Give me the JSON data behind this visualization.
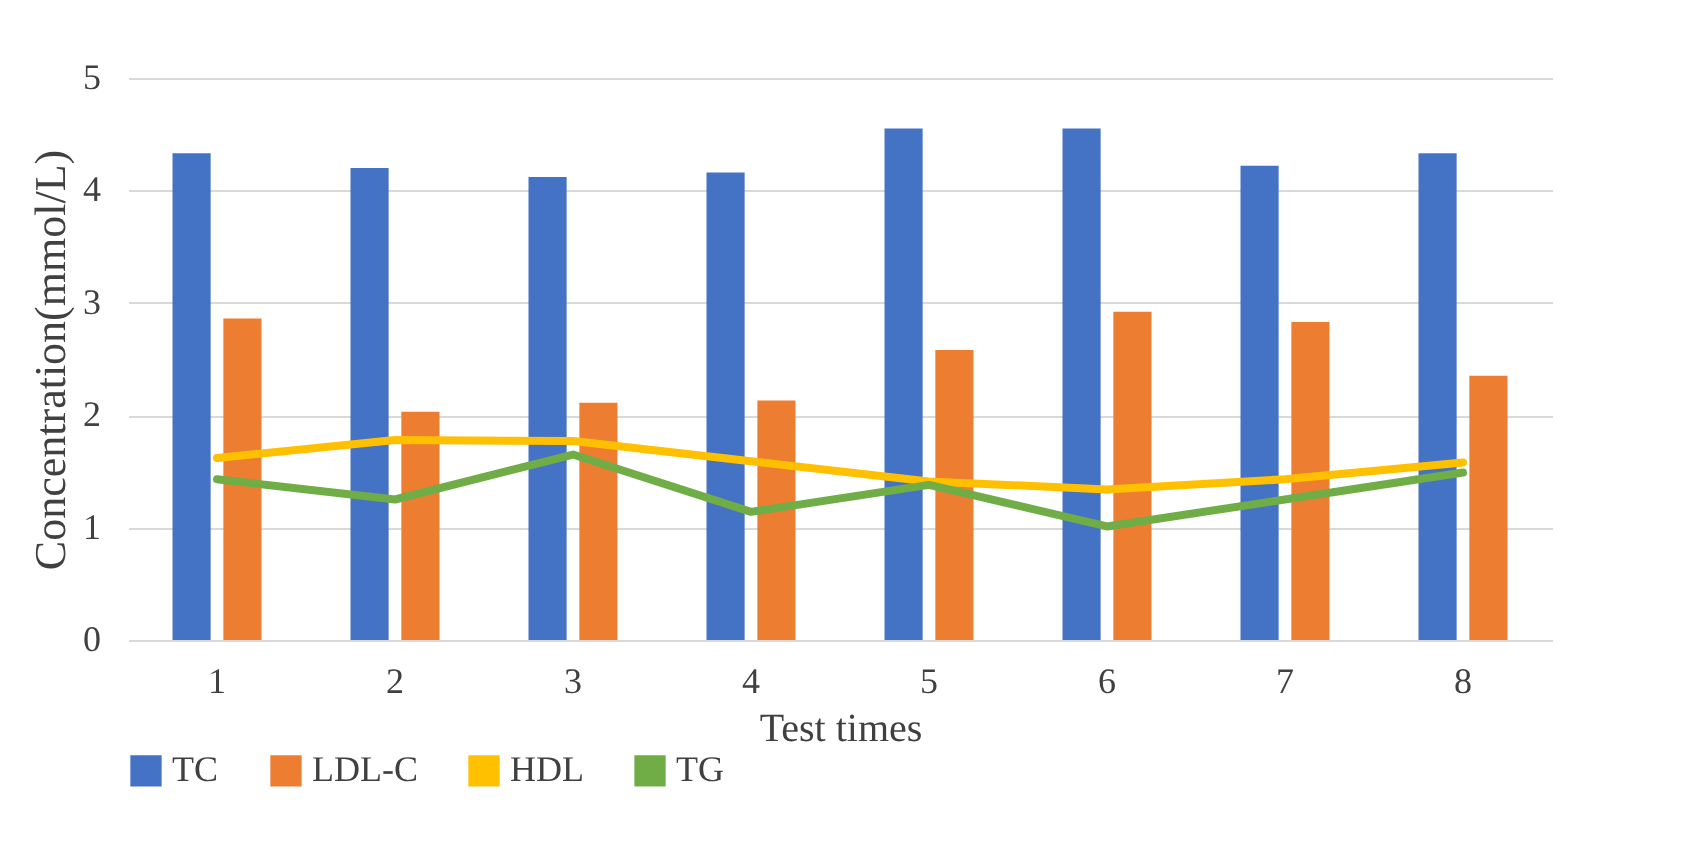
{
  "chart_data": {
    "type": "bar",
    "xlabel": "Test times",
    "ylabel": "Concentration(mmol/L)",
    "categories": [
      "1",
      "2",
      "3",
      "4",
      "5",
      "6",
      "7",
      "8"
    ],
    "series": [
      {
        "name": "TC",
        "color": "#4472c4",
        "values": [
          4.33,
          4.2,
          4.12,
          4.16,
          4.55,
          4.55,
          4.22,
          4.33
        ]
      },
      {
        "name": "LDL-C",
        "color": "#ed7d31",
        "values": [
          2.86,
          2.03,
          2.11,
          2.13,
          2.58,
          2.92,
          2.83,
          2.35
        ]
      },
      {
        "name": "HDL",
        "type": "line",
        "color": "#ffc000",
        "values": [
          1.62,
          1.78,
          1.77,
          1.59,
          1.41,
          1.34,
          1.43,
          1.58
        ]
      },
      {
        "name": "TG",
        "type": "line",
        "color": "#70ad47",
        "values": [
          1.43,
          1.25,
          1.65,
          1.14,
          1.38,
          1.01,
          1.25,
          1.49
        ]
      }
    ],
    "ylim": [
      0,
      5
    ],
    "yticks": [
      0,
      1,
      2,
      3,
      4,
      5
    ],
    "grid": "y",
    "legend": "bottom",
    "marker": "none",
    "line_style": "solid"
  }
}
